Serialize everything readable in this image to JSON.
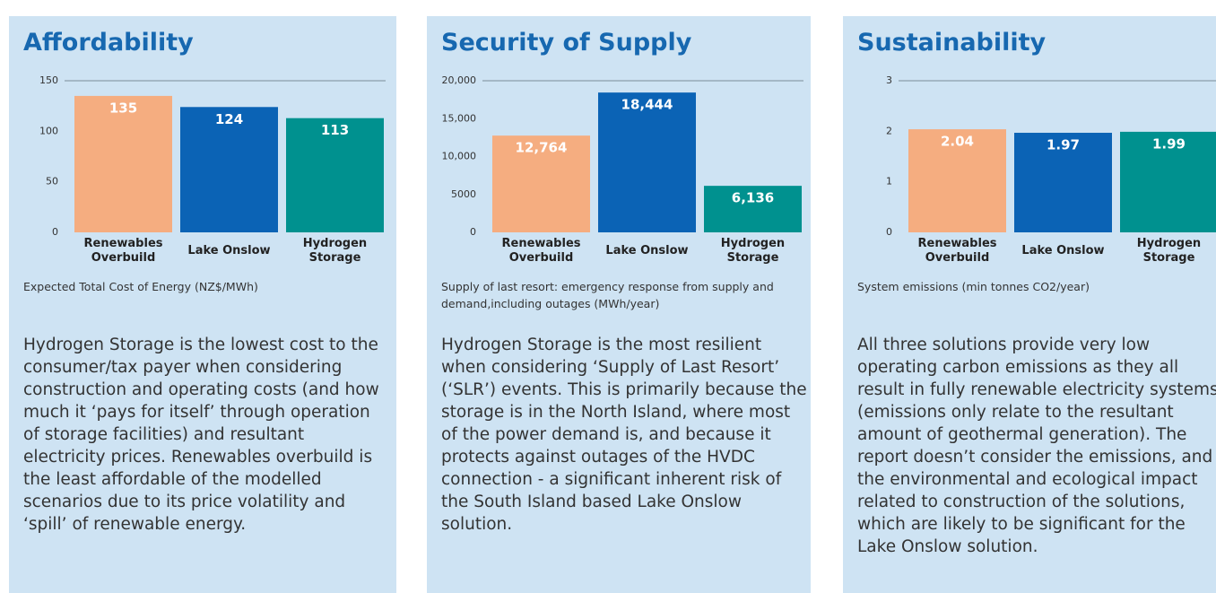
{
  "chart_data": [
    {
      "type": "bar",
      "title": "Affordability",
      "categories": [
        "Renewables Overbuild",
        "Lake Onslow",
        "Hydrogen Storage"
      ],
      "values": [
        135,
        124,
        113
      ],
      "colors": [
        "#f5ad80",
        "#0b63b5",
        "#00918f"
      ],
      "ylim": [
        0,
        150
      ],
      "yticks": [
        0,
        50,
        100,
        150
      ],
      "caption": "Expected Total Cost of Energy (NZ$/MWh)",
      "text": "Hydrogen Storage is the lowest cost to the consumer/tax payer when considering construction and operating costs (and how much it ‘pays for itself’ through operation of storage facilities) and resultant electricity prices. Renewables overbuild is the least affordable of the modelled scenarios due to its price volatility and ‘spill’ of renewable energy."
    },
    {
      "type": "bar",
      "title": "Security of Supply",
      "categories": [
        "Renewables Overbuild",
        "Lake Onslow",
        "Hydrogen Storage"
      ],
      "values": [
        12764,
        18444,
        6136
      ],
      "value_labels": [
        "12,764",
        "18,444",
        "6,136"
      ],
      "colors": [
        "#f5ad80",
        "#0b63b5",
        "#00918f"
      ],
      "ylim": [
        0,
        20000
      ],
      "yticks": [
        0,
        5000,
        {
          "value": 10000,
          "label": "10,000"
        },
        {
          "value": 15000,
          "label": "15,000"
        },
        {
          "value": 20000,
          "label": "20,000"
        }
      ],
      "caption": "Supply of last resort: emergency response from supply and demand,including outages (MWh/year)",
      "text": "Hydrogen Storage is the most resilient when considering ‘Supply of Last Resort’ (‘SLR’) events. This is primarily because the storage is in the North Island, where most of the power demand is, and because it protects against outages of the HVDC connection - a significant inherent risk of the South Island based Lake Onslow solution."
    },
    {
      "type": "bar",
      "title": "Sustainability",
      "categories": [
        "Renewables Overbuild",
        "Lake Onslow",
        "Hydrogen Storage"
      ],
      "values": [
        2.04,
        1.97,
        1.99
      ],
      "colors": [
        "#f5ad80",
        "#0b63b5",
        "#00918f"
      ],
      "ylim": [
        0,
        3
      ],
      "yticks": [
        0,
        1,
        2,
        3
      ],
      "caption": "System emissions (min tonnes CO2/year)",
      "text": "All three solutions provide very low operating carbon emissions as they all result in fully renewable electricity systems (emissions only relate to the resultant amount of geothermal generation). The report doesn’t consider the emissions, and the environmental and ecological impact related to construction of the solutions, which are likely to be significant for the Lake Onslow solution."
    }
  ]
}
